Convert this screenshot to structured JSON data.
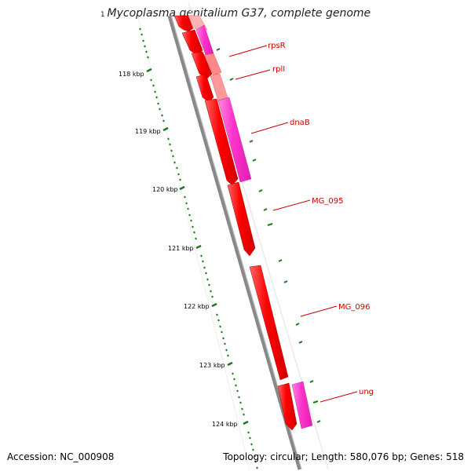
{
  "title": {
    "position": "1",
    "organism": "Mycoplasma genitalium G37, complete genome"
  },
  "footer": {
    "accession": "Accession: NC_000908",
    "summary": "Topology: circular; Length: 580,076 bp; Genes: 518"
  },
  "scale_labels": [
    "118 kbp",
    "119 kbp",
    "120 kbp",
    "121 kbp",
    "122 kbp",
    "123 kbp",
    "124 kbp"
  ],
  "gene_labels": [
    "rpsR",
    "rplI",
    "dnaB",
    "MG_095",
    "MG_096",
    "ung"
  ],
  "colors": {
    "cds": "#ff0000",
    "cds_light": "#ff9999",
    "gene_pink": "#ff33cc",
    "gene_pink_light": "#ff99dd",
    "backbone": "#888888",
    "tick": "#1a7a1a",
    "label": "#cc0000"
  }
}
